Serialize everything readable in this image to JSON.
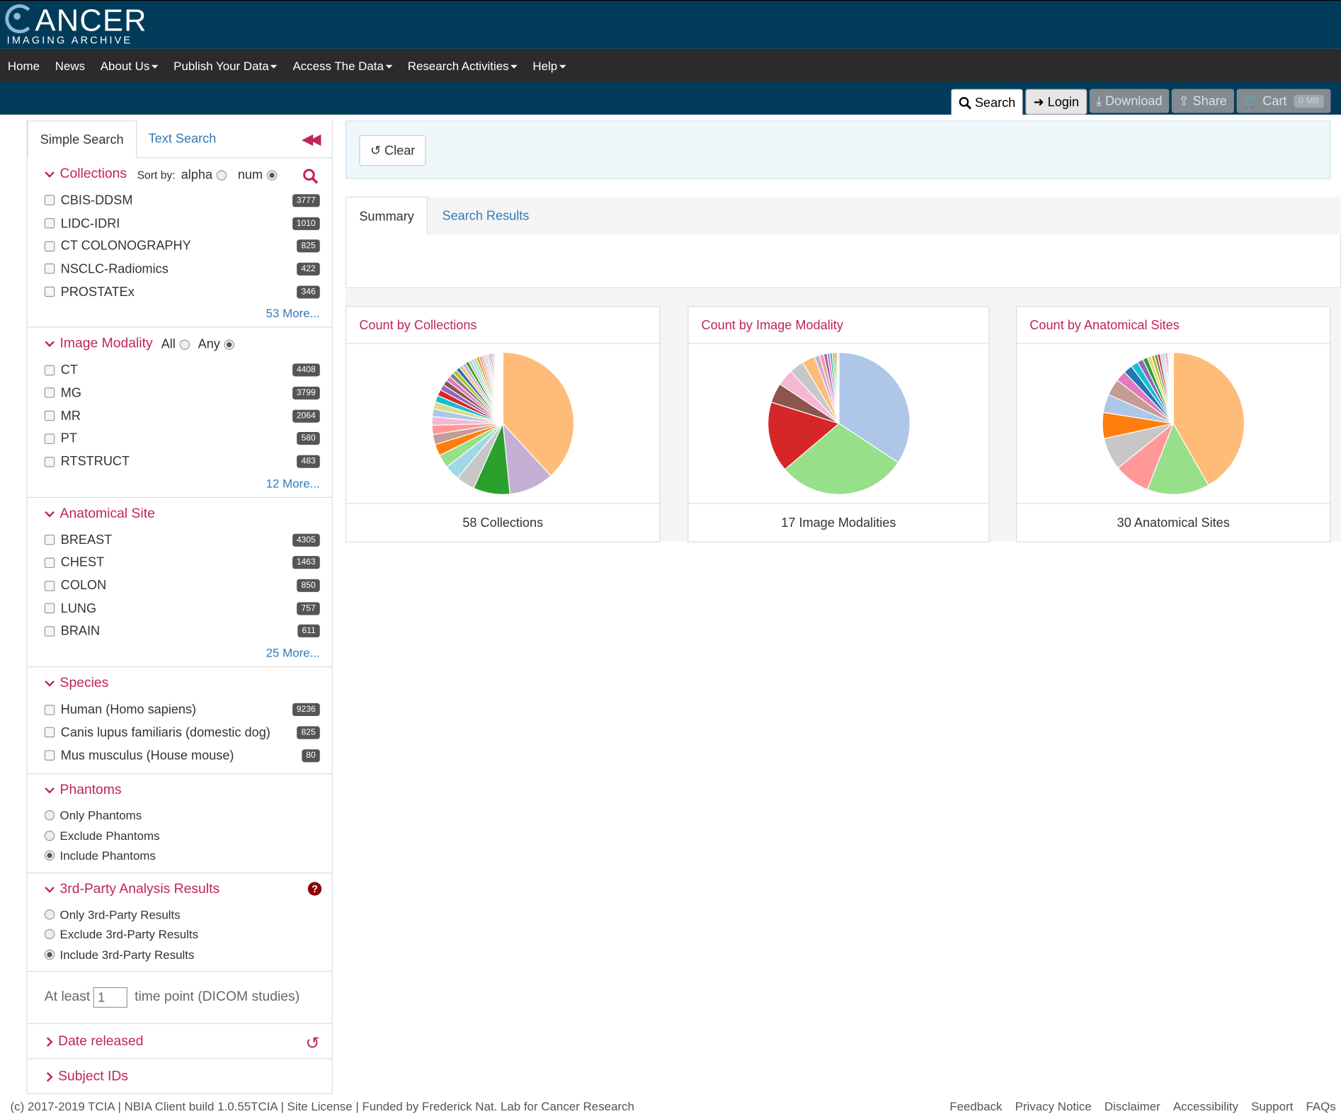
{
  "brand": {
    "line1": "ANCER",
    "line2": "IMAGING ARCHIVE"
  },
  "nav": [
    "Home",
    "News",
    "About Us",
    "Publish Your Data",
    "Access The Data",
    "Research Activities",
    "Help"
  ],
  "toolbar": {
    "search": "Search",
    "login": "Login",
    "download": "Download",
    "share": "Share",
    "cart": "Cart",
    "cart_size": "0 MB"
  },
  "sidebar": {
    "tab_simple": "Simple Search",
    "tab_text": "Text Search",
    "collections": {
      "title": "Collections",
      "sort_by": "Sort by:",
      "alpha": "alpha",
      "num": "num",
      "items": [
        [
          "CBIS-DDSM",
          "3777"
        ],
        [
          "LIDC-IDRI",
          "1010"
        ],
        [
          "CT COLONOGRAPHY",
          "825"
        ],
        [
          "NSCLC-Radiomics",
          "422"
        ],
        [
          "PROSTATEx",
          "346"
        ]
      ],
      "more": "53 More..."
    },
    "modality": {
      "title": "Image Modality",
      "all": "All",
      "any": "Any",
      "items": [
        [
          "CT",
          "4408"
        ],
        [
          "MG",
          "3799"
        ],
        [
          "MR",
          "2064"
        ],
        [
          "PT",
          "580"
        ],
        [
          "RTSTRUCT",
          "483"
        ]
      ],
      "more": "12 More..."
    },
    "anatomical": {
      "title": "Anatomical Site",
      "items": [
        [
          "BREAST",
          "4305"
        ],
        [
          "CHEST",
          "1463"
        ],
        [
          "COLON",
          "850"
        ],
        [
          "LUNG",
          "757"
        ],
        [
          "BRAIN",
          "611"
        ]
      ],
      "more": "25 More..."
    },
    "species": {
      "title": "Species",
      "items": [
        [
          "Human (Homo sapiens)",
          "9236"
        ],
        [
          "Canis lupus familiaris (domestic dog)",
          "825"
        ],
        [
          "Mus musculus (House mouse)",
          "80"
        ]
      ]
    },
    "phantoms": {
      "title": "Phantoms",
      "options": [
        "Only Phantoms",
        "Exclude Phantoms",
        "Include Phantoms"
      ]
    },
    "third_party": {
      "title": "3rd-Party Analysis Results",
      "options": [
        "Only 3rd-Party Results",
        "Exclude 3rd-Party Results",
        "Include 3rd-Party Results"
      ]
    },
    "timepoint": {
      "prefix": "At least",
      "value": "1",
      "suffix": "time point (DICOM studies)"
    },
    "date_released": "Date released",
    "subject_ids": "Subject IDs"
  },
  "main": {
    "clear": "Clear",
    "tab_summary": "Summary",
    "tab_results": "Search Results",
    "cards": [
      {
        "title": "Count by Collections",
        "footer": "58 Collections"
      },
      {
        "title": "Count by Image Modality",
        "footer": "17 Image Modalities"
      },
      {
        "title": "Count by Anatomical Sites",
        "footer": "30 Anatomical Sites"
      }
    ]
  },
  "chart_data": [
    {
      "type": "pie",
      "title": "Count by Collections",
      "values": [
        3777,
        1010,
        825,
        422,
        346,
        300,
        260,
        230,
        210,
        190,
        175,
        160,
        150,
        140,
        130,
        120,
        112,
        105,
        98,
        92,
        86,
        80,
        75,
        70,
        65,
        60,
        56,
        52,
        48,
        44,
        40,
        37,
        34,
        31,
        28,
        26,
        24,
        22,
        20,
        18,
        16,
        14,
        12,
        11,
        10,
        9,
        8,
        7,
        6,
        5,
        5,
        4,
        4,
        3,
        3,
        2,
        2,
        1
      ],
      "colors": [
        "#ffbb78",
        "#c5b0d5",
        "#2ca02c",
        "#c7c7c7",
        "#9edae5",
        "#98df8a",
        "#ff7f0e",
        "#c49c94",
        "#ff9896",
        "#f7b6d2",
        "#aec7e8",
        "#dbdb8d",
        "#17becf",
        "#d62728",
        "#9467bd",
        "#8c564b",
        "#e377c2",
        "#7f7f7f",
        "#bcbd22",
        "#1f77b4"
      ]
    },
    {
      "type": "pie",
      "title": "Count by Image Modality",
      "values": [
        4408,
        3799,
        2064,
        580,
        483,
        430,
        380,
        150,
        120,
        100,
        80,
        70,
        60,
        50,
        40,
        30,
        20
      ],
      "colors": [
        "#aec7e8",
        "#98df8a",
        "#d62728",
        "#8c564b",
        "#f7b6d2",
        "#c7c7c7",
        "#ffbb78",
        "#c5b0d5",
        "#ff9896",
        "#9467bd",
        "#e377c2",
        "#17becf",
        "#bcbd22",
        "#2ca02c",
        "#ff7f0e",
        "#1f77b4",
        "#dbdb8d"
      ]
    },
    {
      "type": "pie",
      "title": "Count by Anatomical Sites",
      "values": [
        4305,
        1463,
        850,
        757,
        611,
        430,
        390,
        250,
        210,
        170,
        140,
        110,
        95,
        80,
        70,
        60,
        50,
        45,
        40,
        35,
        30,
        26,
        22,
        18,
        15,
        12,
        9,
        6,
        4,
        2
      ],
      "colors": [
        "#ffbb78",
        "#98df8a",
        "#ff9896",
        "#c7c7c7",
        "#ff7f0e",
        "#aec7e8",
        "#c49c94",
        "#e377c2",
        "#1f77b4",
        "#17becf",
        "#9467bd",
        "#2ca02c",
        "#dbdb8d",
        "#bcbd22",
        "#7f7f7f",
        "#d62728",
        "#9edae5",
        "#c5b0d5",
        "#f7b6d2",
        "#8c564b"
      ]
    }
  ],
  "footer": {
    "left": "(c) 2017-2019 TCIA | NBIA Client build 1.0.55TCIA | Site License | Funded by Frederick Nat. Lab for Cancer Research",
    "links": [
      "Feedback",
      "Privacy Notice",
      "Disclaimer",
      "Accessibility",
      "Support",
      "FAQs"
    ]
  }
}
